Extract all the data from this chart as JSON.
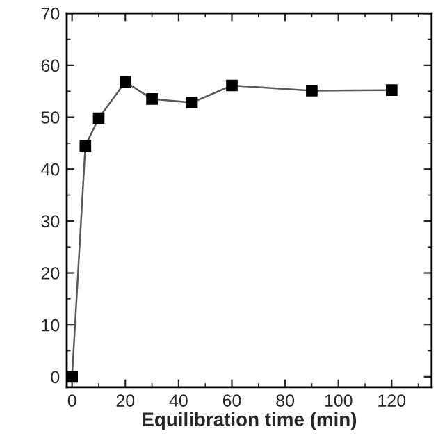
{
  "chart_data": {
    "type": "line",
    "xlabel": "Equilibration time (min)",
    "x": [
      0,
      5,
      10,
      20,
      30,
      45,
      60,
      90,
      120
    ],
    "series": [
      {
        "color": "#000000",
        "values": [
          0,
          44.5,
          49.8,
          56.8,
          53.5,
          52.8,
          56.1,
          55.1,
          55.2
        ]
      }
    ],
    "xlim": [
      -2,
      135
    ],
    "ylim": [
      -2,
      70
    ],
    "xticks": [
      0,
      20,
      40,
      60,
      80,
      100,
      120
    ],
    "yticks": [
      0,
      10,
      20,
      30,
      40,
      50,
      60,
      70
    ],
    "marker": "square",
    "line_style": "solid",
    "grid": false,
    "legend": false
  }
}
